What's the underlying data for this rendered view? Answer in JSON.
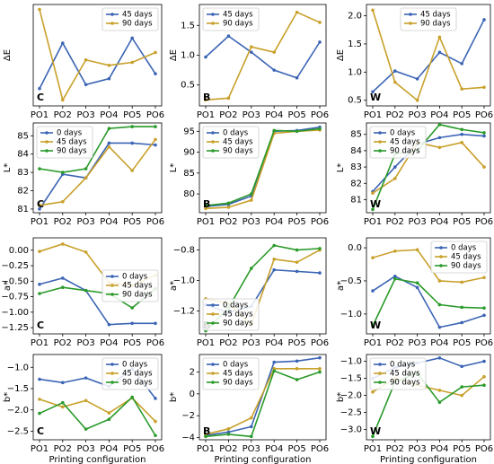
{
  "chart_data": [
    {
      "type": "line",
      "ylabel": "ΔE",
      "annotation": "C",
      "legend": "upper right",
      "categories": [
        "PO1",
        "PO2",
        "PO3",
        "PO4",
        "PO5",
        "PO6"
      ],
      "ylim": [
        0.4,
        2.45
      ],
      "series": [
        {
          "name": "45 days",
          "color": "#3b64b4",
          "values": [
            0.75,
            1.67,
            0.83,
            0.95,
            1.77,
            1.05
          ]
        },
        {
          "name": "90 days",
          "color": "#c8a02a",
          "values": [
            2.35,
            0.52,
            1.33,
            1.22,
            1.28,
            1.48
          ]
        }
      ]
    },
    {
      "type": "line",
      "ylabel": "ΔE",
      "annotation": "B",
      "legend": "upper left",
      "categories": [
        "PO1",
        "PO2",
        "PO3",
        "PO4",
        "PO5",
        "PO6"
      ],
      "ylim": [
        0.15,
        1.85
      ],
      "yticks": [
        0.5,
        {
          "value": 1,
          "label": "1.0"
        },
        1.5
      ],
      "series": [
        {
          "name": "45 days",
          "color": "#3b64b4",
          "values": [
            0.97,
            1.32,
            1.05,
            0.75,
            0.62,
            1.22
          ]
        },
        {
          "name": "90 days",
          "color": "#c8a02a",
          "values": [
            0.25,
            0.28,
            1.14,
            1.05,
            1.72,
            1.55
          ]
        }
      ]
    },
    {
      "type": "line",
      "ylabel": "ΔE",
      "annotation": "W",
      "legend": "upper center",
      "categories": [
        "PO1",
        "PO2",
        "PO3",
        "PO4",
        "PO5",
        "PO6"
      ],
      "ylim": [
        0.4,
        2.2
      ],
      "yticks": [
        0.5,
        {
          "value": 1,
          "label": "1.0"
        },
        1.5,
        {
          "value": 2,
          "label": "2.0"
        }
      ],
      "series": [
        {
          "name": "45 days",
          "color": "#3b64b4",
          "values": [
            0.65,
            1.02,
            0.88,
            1.35,
            1.15,
            1.93
          ]
        },
        {
          "name": "90 days",
          "color": "#c8a02a",
          "values": [
            2.1,
            0.82,
            0.5,
            1.62,
            0.7,
            0.73
          ]
        }
      ]
    },
    {
      "type": "line",
      "ylabel": "L*",
      "annotation": "C",
      "legend": "upper left",
      "categories": [
        "PO1",
        "PO2",
        "PO3",
        "PO4",
        "PO5",
        "PO6"
      ],
      "ylim": [
        80.8,
        85.7
      ],
      "yticks": [
        81,
        82,
        83,
        84,
        85
      ],
      "series": [
        {
          "name": "0 days",
          "color": "#3b64b4",
          "values": [
            81.0,
            82.9,
            82.7,
            84.6,
            84.6,
            84.5
          ]
        },
        {
          "name": "45 days",
          "color": "#c8a02a",
          "values": [
            81.2,
            81.4,
            82.7,
            84.4,
            83.1,
            84.8
          ]
        },
        {
          "name": "90 days",
          "color": "#2a9a2a",
          "values": [
            83.2,
            83.0,
            83.2,
            85.4,
            85.5,
            85.5
          ]
        }
      ]
    },
    {
      "type": "line",
      "ylabel": "L*",
      "annotation": "B",
      "legend": "upper left",
      "categories": [
        "PO1",
        "PO2",
        "PO3",
        "PO4",
        "PO5",
        "PO6"
      ],
      "ylim": [
        75.5,
        97
      ],
      "yticks": [
        80,
        85,
        90,
        95
      ],
      "series": [
        {
          "name": "0 days",
          "color": "#3b64b4",
          "values": [
            77,
            77.5,
            79.5,
            95,
            95.2,
            96
          ]
        },
        {
          "name": "45 days",
          "color": "#c8a02a",
          "values": [
            76.5,
            76.8,
            78.5,
            94.5,
            95,
            95.3
          ]
        },
        {
          "name": "90 days",
          "color": "#2a9a2a",
          "values": [
            77.2,
            77.8,
            80,
            95.2,
            95,
            95.6
          ]
        }
      ]
    },
    {
      "type": "line",
      "ylabel": "L*",
      "annotation": "W",
      "legend": "upper left",
      "categories": [
        "PO1",
        "PO2",
        "PO3",
        "PO4",
        "PO5",
        "PO6"
      ],
      "ylim": [
        80.2,
        85.7
      ],
      "yticks": [
        81,
        82,
        83,
        84,
        85
      ],
      "series": [
        {
          "name": "0 days",
          "color": "#3b64b4",
          "values": [
            81.5,
            83.0,
            84.4,
            84.8,
            85.0,
            84.9
          ]
        },
        {
          "name": "45 days",
          "color": "#c8a02a",
          "values": [
            81.4,
            82.3,
            84.5,
            84.2,
            84.5,
            83.0
          ]
        },
        {
          "name": "90 days",
          "color": "#2a9a2a",
          "values": [
            80.4,
            83.8,
            84.0,
            85.6,
            85.3,
            85.1
          ]
        }
      ]
    },
    {
      "type": "line",
      "ylabel": "a*",
      "annotation": "C",
      "legend": "center right",
      "categories": [
        "PO1",
        "PO2",
        "PO3",
        "PO4",
        "PO5",
        "PO6"
      ],
      "ylim": [
        -1.35,
        0.2
      ],
      "yticks": [
        {
          "value": 0,
          "label": "0.00"
        },
        {
          "value": -0.25,
          "label": "−0.25"
        },
        {
          "value": -0.5,
          "label": "−0.50"
        },
        {
          "value": -0.75,
          "label": "−0.75"
        },
        {
          "value": -1,
          "label": "−1.00"
        },
        {
          "value": -1.25,
          "label": "−1.25"
        }
      ],
      "series": [
        {
          "name": "0 days",
          "color": "#3b64b4",
          "values": [
            -0.55,
            -0.45,
            -0.65,
            -1.2,
            -1.18,
            -1.18
          ]
        },
        {
          "name": "45 days",
          "color": "#c8a02a",
          "values": [
            -0.02,
            0.1,
            -0.03,
            -0.52,
            -0.57,
            -0.4
          ]
        },
        {
          "name": "90 days",
          "color": "#2a9a2a",
          "values": [
            -0.7,
            -0.6,
            -0.65,
            -0.7,
            -0.93,
            -0.62
          ]
        }
      ]
    },
    {
      "type": "line",
      "ylabel": "a*",
      "annotation": "B",
      "legend": "lower left",
      "categories": [
        "PO1",
        "PO2",
        "PO3",
        "PO4",
        "PO5",
        "PO6"
      ],
      "ylim": [
        -1.35,
        -0.72
      ],
      "yticks": [
        {
          "value": -1.2,
          "label": "−1.2"
        },
        {
          "value": -1,
          "label": "−1.0"
        },
        {
          "value": -0.8,
          "label": "−0.8"
        }
      ],
      "series": [
        {
          "name": "0 days",
          "color": "#3b64b4",
          "values": [
            -1.16,
            -1.21,
            -1.17,
            -0.93,
            -0.94,
            -0.95
          ]
        },
        {
          "name": "45 days",
          "color": "#c8a02a",
          "values": [
            -1.12,
            -1.15,
            -1.29,
            -0.86,
            -0.88,
            -0.8
          ]
        },
        {
          "name": "90 days",
          "color": "#2a9a2a",
          "values": [
            -1.33,
            -1.18,
            -0.92,
            -0.77,
            -0.8,
            -0.79
          ]
        }
      ]
    },
    {
      "type": "line",
      "ylabel": "a*",
      "annotation": "W",
      "legend": "upper right",
      "categories": [
        "PO1",
        "PO2",
        "PO3",
        "PO4",
        "PO5",
        "PO6"
      ],
      "ylim": [
        -1.3,
        0.15
      ],
      "yticks": [
        {
          "value": 0,
          "label": "0.0"
        },
        {
          "value": -0.5,
          "label": "−0.5"
        },
        {
          "value": -1,
          "label": "−1.0"
        }
      ],
      "series": [
        {
          "name": "0 days",
          "color": "#3b64b4",
          "values": [
            -0.65,
            -0.43,
            -0.6,
            -1.2,
            -1.13,
            -1.02
          ]
        },
        {
          "name": "45 days",
          "color": "#c8a02a",
          "values": [
            -0.15,
            -0.05,
            -0.03,
            -0.5,
            -0.52,
            -0.45
          ]
        },
        {
          "name": "90 days",
          "color": "#2a9a2a",
          "values": [
            -1.18,
            -0.47,
            -0.53,
            -0.86,
            -0.9,
            -0.91
          ]
        }
      ]
    },
    {
      "type": "line",
      "ylabel": "b*",
      "annotation": "C",
      "legend": "upper right",
      "xlabel": "Printing configuration",
      "categories": [
        "PO1",
        "PO2",
        "PO3",
        "PO4",
        "PO5",
        "PO6"
      ],
      "ylim": [
        -2.7,
        -0.7
      ],
      "yticks": [
        {
          "value": -1,
          "label": "−1.0"
        },
        {
          "value": -1.5,
          "label": "−1.5"
        },
        {
          "value": -2,
          "label": "−2.0"
        },
        {
          "value": -2.5,
          "label": "−2.5"
        }
      ],
      "series": [
        {
          "name": "0 days",
          "color": "#3b64b4",
          "values": [
            -1.28,
            -1.36,
            -1.25,
            -1.45,
            -1.03,
            -1.73
          ]
        },
        {
          "name": "45 days",
          "color": "#c8a02a",
          "values": [
            -1.75,
            -1.93,
            -1.78,
            -2.07,
            -1.72,
            -2.27
          ]
        },
        {
          "name": "90 days",
          "color": "#2a9a2a",
          "values": [
            -2.08,
            -1.83,
            -2.45,
            -2.22,
            -1.7,
            -2.6
          ]
        }
      ]
    },
    {
      "type": "line",
      "ylabel": "b*",
      "annotation": "B",
      "legend": "upper left",
      "xlabel": "Printing configuration",
      "categories": [
        "PO1",
        "PO2",
        "PO3",
        "PO4",
        "PO5",
        "PO6"
      ],
      "ylim": [
        -4.2,
        3.6
      ],
      "yticks": [
        {
          "value": -4,
          "label": "−4"
        },
        {
          "value": -2,
          "label": "−2"
        },
        0,
        2
      ],
      "series": [
        {
          "name": "0 days",
          "color": "#3b64b4",
          "values": [
            -3.8,
            -3.5,
            -3.0,
            2.9,
            3.0,
            3.3
          ]
        },
        {
          "name": "45 days",
          "color": "#c8a02a",
          "values": [
            -3.7,
            -3.2,
            -2.2,
            2.3,
            2.3,
            2.3
          ]
        },
        {
          "name": "90 days",
          "color": "#2a9a2a",
          "values": [
            -3.9,
            -3.7,
            -3.9,
            2.1,
            1.3,
            2.0
          ]
        }
      ]
    },
    {
      "type": "line",
      "ylabel": "b*",
      "annotation": "W",
      "legend": "upper left",
      "xlabel": "Printing configuration",
      "categories": [
        "PO1",
        "PO2",
        "PO3",
        "PO4",
        "PO5",
        "PO6"
      ],
      "ylim": [
        -3.3,
        -0.8
      ],
      "yticks": [
        {
          "value": -1,
          "label": "−1.0"
        },
        {
          "value": -1.5,
          "label": "−1.5"
        },
        {
          "value": -2,
          "label": "−2.0"
        },
        {
          "value": -2.5,
          "label": "−2.5"
        },
        {
          "value": -3,
          "label": "−3.0"
        }
      ],
      "series": [
        {
          "name": "0 days",
          "color": "#3b64b4",
          "values": [
            -1.5,
            -1.18,
            -1.05,
            -0.9,
            -1.15,
            -1.0
          ]
        },
        {
          "name": "45 days",
          "color": "#c8a02a",
          "values": [
            -1.9,
            -1.5,
            -1.7,
            -1.85,
            -2.0,
            -1.45
          ]
        },
        {
          "name": "90 days",
          "color": "#2a9a2a",
          "values": [
            -3.2,
            -1.6,
            -1.35,
            -2.2,
            -1.75,
            -1.7
          ]
        }
      ]
    }
  ]
}
